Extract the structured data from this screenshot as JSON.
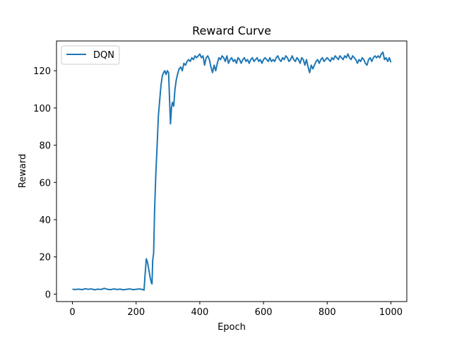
{
  "chart_data": {
    "type": "line",
    "title": "Reward Curve",
    "xlabel": "Epoch",
    "ylabel": "Reward",
    "xlim": [
      -50,
      1050
    ],
    "ylim": [
      -4,
      136
    ],
    "xticks": [
      0,
      200,
      400,
      600,
      800,
      1000
    ],
    "yticks": [
      0,
      20,
      40,
      60,
      80,
      100,
      120
    ],
    "legend": {
      "position": "top-left",
      "entries": [
        "DQN"
      ]
    },
    "grid": false,
    "series": [
      {
        "name": "DQN",
        "color": "#1f77b4",
        "points": [
          [
            0,
            2.6
          ],
          [
            10,
            2.5
          ],
          [
            20,
            2.7
          ],
          [
            30,
            2.4
          ],
          [
            40,
            2.9
          ],
          [
            50,
            2.6
          ],
          [
            60,
            2.8
          ],
          [
            70,
            2.3
          ],
          [
            80,
            2.7
          ],
          [
            90,
            2.5
          ],
          [
            100,
            3.1
          ],
          [
            110,
            2.6
          ],
          [
            120,
            2.4
          ],
          [
            130,
            2.8
          ],
          [
            140,
            2.5
          ],
          [
            150,
            2.7
          ],
          [
            160,
            2.3
          ],
          [
            170,
            2.6
          ],
          [
            180,
            2.8
          ],
          [
            190,
            2.4
          ],
          [
            200,
            2.6
          ],
          [
            210,
            2.8
          ],
          [
            220,
            2.5
          ],
          [
            225,
            2.2
          ],
          [
            228,
            10
          ],
          [
            232,
            19
          ],
          [
            236,
            17
          ],
          [
            240,
            13
          ],
          [
            244,
            9
          ],
          [
            248,
            6
          ],
          [
            250,
            5.5
          ],
          [
            252,
            18
          ],
          [
            255,
            22
          ],
          [
            258,
            45
          ],
          [
            262,
            65
          ],
          [
            266,
            80
          ],
          [
            270,
            96
          ],
          [
            274,
            104
          ],
          [
            278,
            112
          ],
          [
            282,
            117
          ],
          [
            286,
            119
          ],
          [
            290,
            120
          ],
          [
            294,
            118
          ],
          [
            298,
            120
          ],
          [
            302,
            119
          ],
          [
            306,
            100
          ],
          [
            308,
            91.5
          ],
          [
            311,
            100
          ],
          [
            314,
            103
          ],
          [
            318,
            101
          ],
          [
            322,
            110
          ],
          [
            326,
            115
          ],
          [
            330,
            118
          ],
          [
            335,
            121
          ],
          [
            340,
            122
          ],
          [
            345,
            120
          ],
          [
            350,
            124
          ],
          [
            355,
            123
          ],
          [
            360,
            125
          ],
          [
            365,
            126
          ],
          [
            370,
            125
          ],
          [
            375,
            127
          ],
          [
            380,
            126
          ],
          [
            385,
            128
          ],
          [
            390,
            127
          ],
          [
            395,
            128
          ],
          [
            400,
            129
          ],
          [
            405,
            127
          ],
          [
            410,
            128
          ],
          [
            415,
            123
          ],
          [
            420,
            127
          ],
          [
            425,
            128
          ],
          [
            430,
            126
          ],
          [
            435,
            122
          ],
          [
            440,
            119
          ],
          [
            445,
            123
          ],
          [
            450,
            120
          ],
          [
            455,
            124
          ],
          [
            460,
            127
          ],
          [
            465,
            126
          ],
          [
            470,
            128
          ],
          [
            475,
            127
          ],
          [
            480,
            125
          ],
          [
            485,
            128
          ],
          [
            490,
            124
          ],
          [
            495,
            126
          ],
          [
            500,
            127
          ],
          [
            505,
            125
          ],
          [
            510,
            126
          ],
          [
            515,
            124
          ],
          [
            520,
            127
          ],
          [
            525,
            126
          ],
          [
            530,
            124
          ],
          [
            535,
            126
          ],
          [
            540,
            127
          ],
          [
            545,
            125
          ],
          [
            550,
            126
          ],
          [
            555,
            124
          ],
          [
            560,
            126
          ],
          [
            565,
            127
          ],
          [
            570,
            125
          ],
          [
            575,
            126
          ],
          [
            580,
            127
          ],
          [
            585,
            125
          ],
          [
            590,
            126
          ],
          [
            595,
            124
          ],
          [
            600,
            126
          ],
          [
            605,
            127
          ],
          [
            610,
            126
          ],
          [
            615,
            125
          ],
          [
            620,
            127
          ],
          [
            625,
            125
          ],
          [
            630,
            126
          ],
          [
            635,
            125
          ],
          [
            640,
            127
          ],
          [
            645,
            128
          ],
          [
            650,
            126
          ],
          [
            655,
            125
          ],
          [
            660,
            127
          ],
          [
            665,
            126
          ],
          [
            670,
            128
          ],
          [
            675,
            127
          ],
          [
            680,
            125
          ],
          [
            685,
            126
          ],
          [
            690,
            128
          ],
          [
            695,
            126
          ],
          [
            700,
            125
          ],
          [
            705,
            127
          ],
          [
            710,
            126
          ],
          [
            715,
            124
          ],
          [
            720,
            127
          ],
          [
            725,
            126
          ],
          [
            730,
            123
          ],
          [
            735,
            126
          ],
          [
            740,
            122
          ],
          [
            745,
            119
          ],
          [
            750,
            123
          ],
          [
            755,
            121
          ],
          [
            760,
            123
          ],
          [
            765,
            125
          ],
          [
            770,
            126
          ],
          [
            775,
            124
          ],
          [
            780,
            126
          ],
          [
            785,
            127
          ],
          [
            790,
            125
          ],
          [
            795,
            126
          ],
          [
            800,
            127
          ],
          [
            805,
            126
          ],
          [
            810,
            125
          ],
          [
            815,
            127
          ],
          [
            820,
            126
          ],
          [
            825,
            128
          ],
          [
            830,
            127
          ],
          [
            835,
            126
          ],
          [
            840,
            128
          ],
          [
            845,
            127
          ],
          [
            850,
            126
          ],
          [
            855,
            128
          ],
          [
            860,
            127
          ],
          [
            865,
            129
          ],
          [
            870,
            127
          ],
          [
            875,
            126
          ],
          [
            880,
            128
          ],
          [
            885,
            127
          ],
          [
            890,
            126
          ],
          [
            895,
            124
          ],
          [
            900,
            126
          ],
          [
            905,
            125
          ],
          [
            910,
            127
          ],
          [
            915,
            126
          ],
          [
            920,
            124
          ],
          [
            925,
            123
          ],
          [
            930,
            126
          ],
          [
            935,
            127
          ],
          [
            940,
            125
          ],
          [
            945,
            127
          ],
          [
            950,
            128
          ],
          [
            955,
            127
          ],
          [
            960,
            128
          ],
          [
            965,
            127
          ],
          [
            970,
            129
          ],
          [
            975,
            130
          ],
          [
            980,
            126
          ],
          [
            985,
            127
          ],
          [
            990,
            125
          ],
          [
            995,
            127
          ],
          [
            1000,
            124.5
          ]
        ]
      }
    ]
  }
}
